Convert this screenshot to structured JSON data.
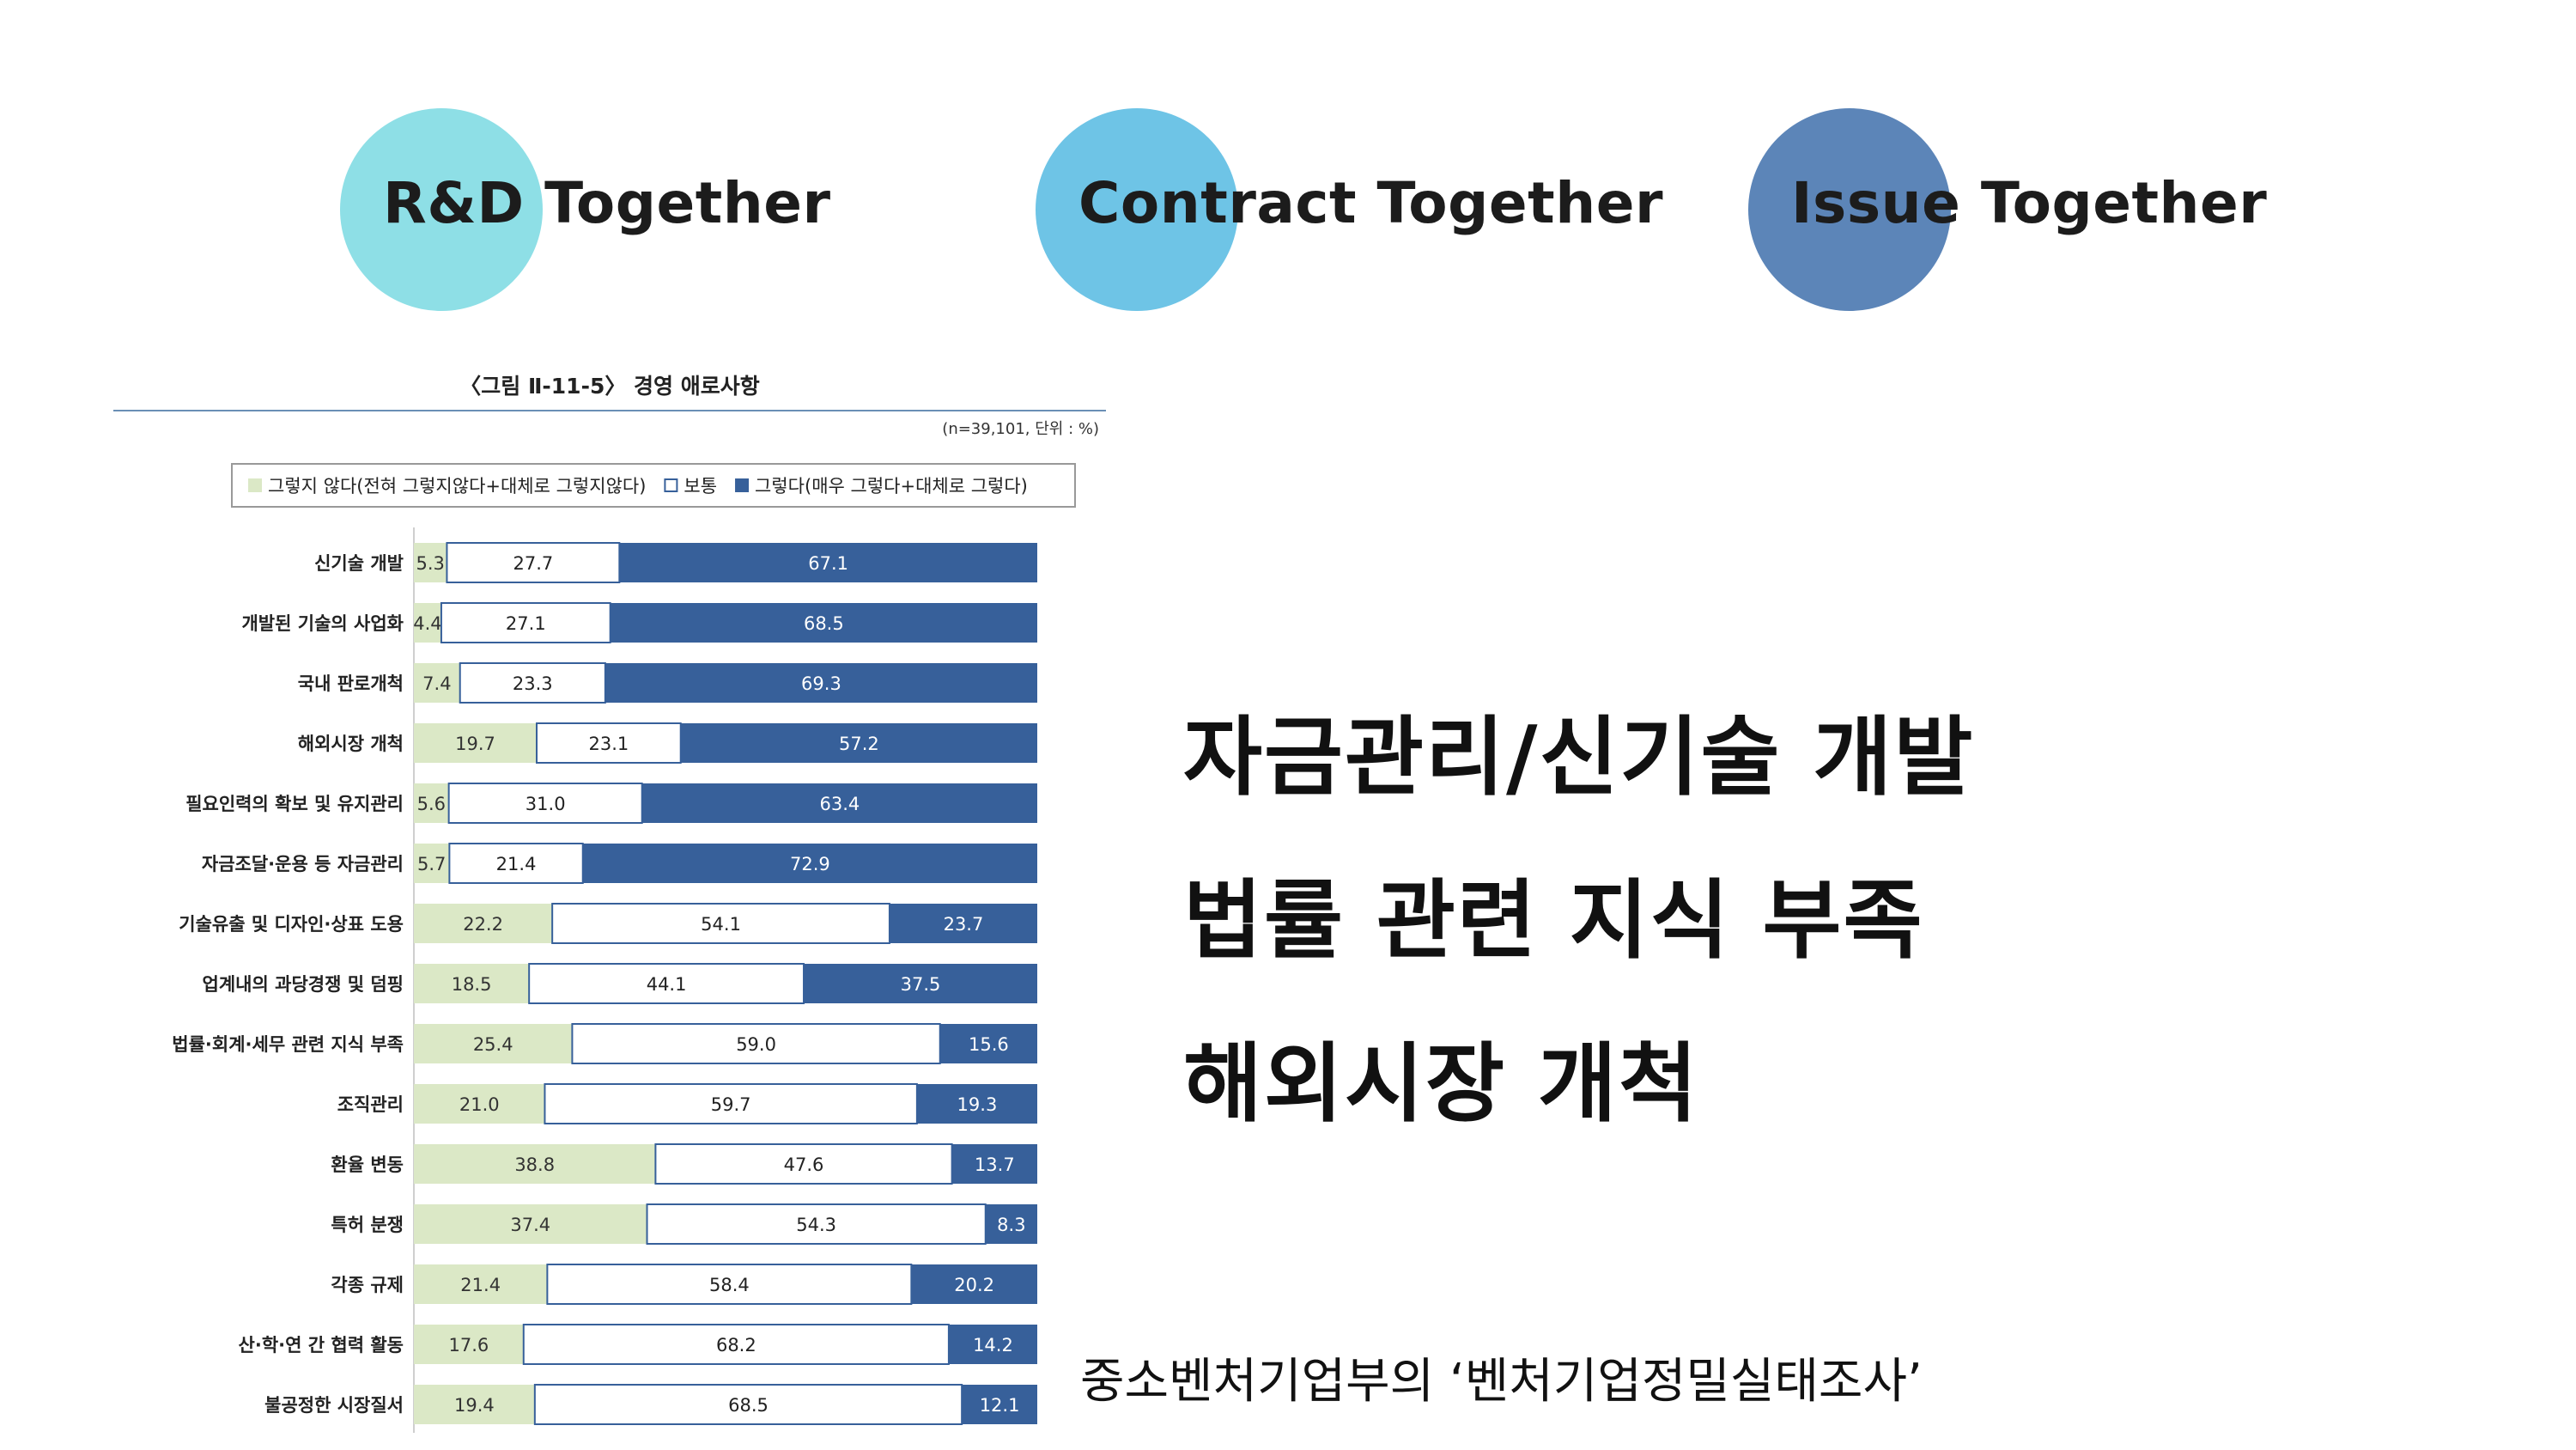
{
  "tags": [
    {
      "label": "R&D Together"
    },
    {
      "label": "Contract Together"
    },
    {
      "label": "Issue Together"
    }
  ],
  "key_points": [
    "자금관리/신기술 개발",
    "법률 관련 지식 부족",
    "해외시장 개척"
  ],
  "source": "중소벤처기업부의 ‘벤처기업정밀실태조사’",
  "colors": {
    "disagree": "#dbe8c6",
    "neutral": "#ffffff",
    "agree": "#37609a",
    "border": "#37609a"
  },
  "chart_data": {
    "type": "bar",
    "orientation": "horizontal",
    "stacked": true,
    "title": "〈그림 Ⅱ-11-5〉 경영 애로사항",
    "note": "(n=39,101,  단위 : %)",
    "legend_position": "top",
    "xlim": [
      0,
      100
    ],
    "categories": [
      "신기술 개발",
      "개발된 기술의 사업화",
      "국내 판로개척",
      "해외시장 개척",
      "필요인력의 확보 및 유지관리",
      "자금조달·운용 등 자금관리",
      "기술유출 및 디자인·상표 도용",
      "업계내의 과당경쟁 및 덤핑",
      "법률·회계·세무 관련 지식 부족",
      "조직관리",
      "환율 변동",
      "특허 분쟁",
      "각종 규제",
      "산·학·연 간 협력 활동",
      "불공정한 시장질서"
    ],
    "series": [
      {
        "name": "그렇지 않다(전혀 그렇지않다+대체로 그렇지않다)",
        "values": [
          5.3,
          4.4,
          7.4,
          19.7,
          5.6,
          5.7,
          22.2,
          18.5,
          25.4,
          21.0,
          38.8,
          37.4,
          21.4,
          17.6,
          19.4
        ]
      },
      {
        "name": "보통",
        "values": [
          27.7,
          27.1,
          23.3,
          23.1,
          31.0,
          21.4,
          54.1,
          44.1,
          59.0,
          59.7,
          47.6,
          54.3,
          58.4,
          68.2,
          68.5
        ]
      },
      {
        "name": "그렇다(매우 그렇다+대체로 그렇다)",
        "values": [
          67.1,
          68.5,
          69.3,
          57.2,
          63.4,
          72.9,
          23.7,
          37.5,
          15.6,
          19.3,
          13.7,
          8.3,
          20.2,
          14.2,
          12.1
        ]
      }
    ]
  }
}
